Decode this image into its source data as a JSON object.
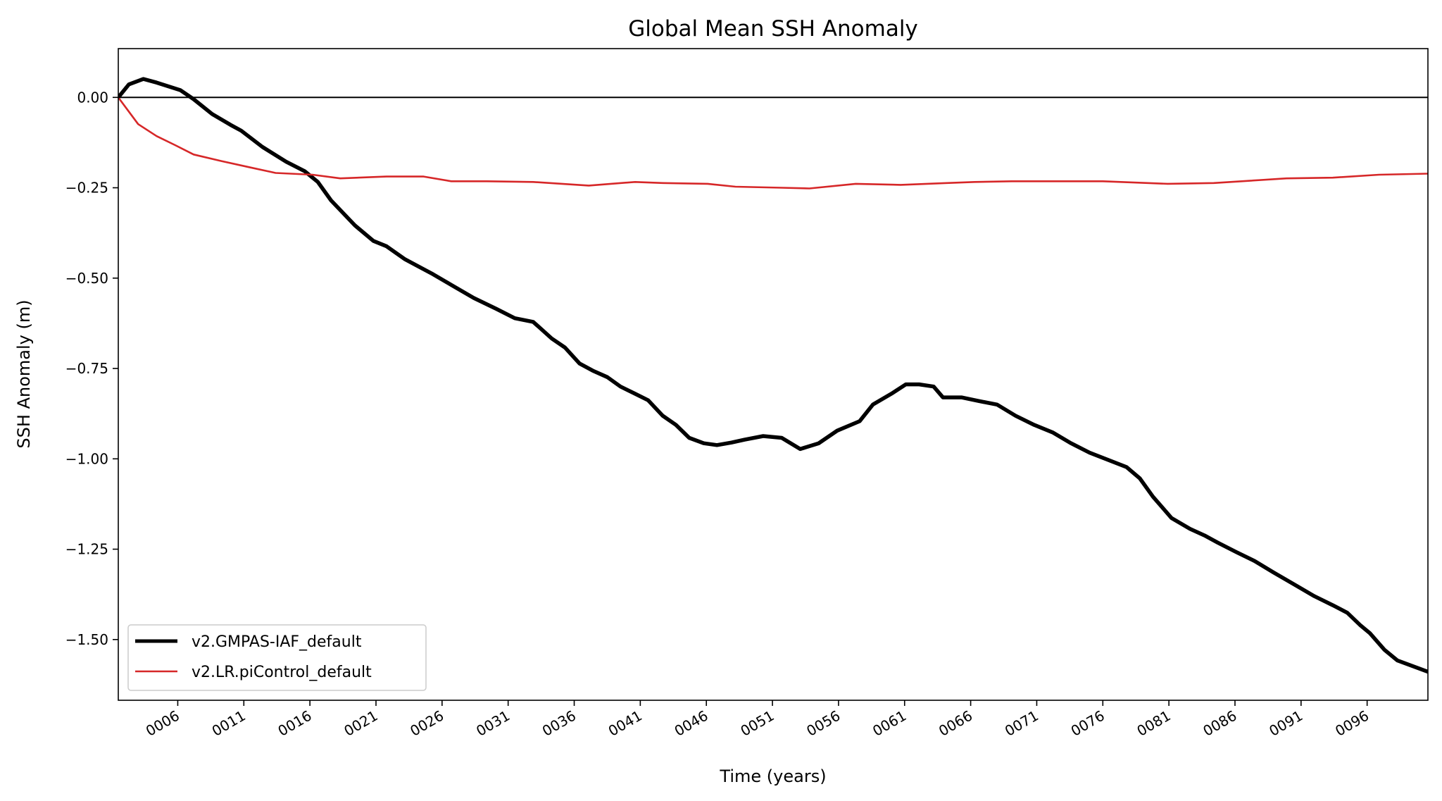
{
  "chart_data": {
    "type": "line",
    "title": "Global Mean SSH Anomaly",
    "xlabel": "Time (years)",
    "ylabel": "SSH Anomaly (m)",
    "xlim": [
      1.5,
      100.6
    ],
    "ylim": [
      -1.668,
      0.135
    ],
    "grid": false,
    "legend_position": "lower-left",
    "x_ticks": [
      6,
      11,
      16,
      21,
      26,
      31,
      36,
      41,
      46,
      51,
      56,
      61,
      66,
      71,
      76,
      81,
      86,
      91,
      96
    ],
    "x_tick_labels": [
      "0006",
      "0011",
      "0016",
      "0021",
      "0026",
      "0031",
      "0036",
      "0041",
      "0046",
      "0051",
      "0056",
      "0061",
      "0066",
      "0071",
      "0076",
      "0081",
      "0086",
      "0091",
      "0096"
    ],
    "y_ticks": [
      0,
      -0.25,
      -0.5,
      -0.75,
      -1.0,
      -1.25,
      -1.5
    ],
    "y_tick_labels": [
      "0.00",
      "−0.25",
      "−0.50",
      "−0.75",
      "−1.00",
      "−1.25",
      "−1.50"
    ],
    "reference_line": 0,
    "series": [
      {
        "name": "v2.GMPAS-IAF_default",
        "color": "#000000",
        "x": [
          1.5,
          2.3,
          3.4,
          4.4,
          6.2,
          7.2,
          8.6,
          10.0,
          10.8,
          12.4,
          14.2,
          15.6,
          16.6,
          17.6,
          19.4,
          20.8,
          21.8,
          23.2,
          25.3,
          26.7,
          28.4,
          30.1,
          31.5,
          32.9,
          34.3,
          35.3,
          36.4,
          37.4,
          38.5,
          39.5,
          40.6,
          41.6,
          42.7,
          43.7,
          44.7,
          45.8,
          46.8,
          47.9,
          48.9,
          50.3,
          51.7,
          53.1,
          54.5,
          55.9,
          57.6,
          58.6,
          60.0,
          61.1,
          62.1,
          63.2,
          63.9,
          65.3,
          66.6,
          68.0,
          69.4,
          70.8,
          72.2,
          73.6,
          75.0,
          76.4,
          77.8,
          78.8,
          79.8,
          81.2,
          82.6,
          83.7,
          84.7,
          86.1,
          87.5,
          88.9,
          90.6,
          92.0,
          93.4,
          94.5,
          95.5,
          96.2,
          97.3,
          98.3,
          100.6
        ],
        "y": [
          0,
          0.036,
          0.051,
          0.041,
          0.02,
          -0.005,
          -0.046,
          -0.076,
          -0.092,
          -0.137,
          -0.178,
          -0.204,
          -0.234,
          -0.285,
          -0.354,
          -0.397,
          -0.412,
          -0.448,
          -0.489,
          -0.519,
          -0.555,
          -0.585,
          -0.611,
          -0.621,
          -0.667,
          -0.692,
          -0.736,
          -0.756,
          -0.774,
          -0.8,
          -0.82,
          -0.838,
          -0.881,
          -0.906,
          -0.942,
          -0.957,
          -0.962,
          -0.955,
          -0.947,
          -0.937,
          -0.942,
          -0.973,
          -0.957,
          -0.922,
          -0.896,
          -0.85,
          -0.82,
          -0.794,
          -0.794,
          -0.8,
          -0.83,
          -0.83,
          -0.84,
          -0.85,
          -0.881,
          -0.906,
          -0.927,
          -0.957,
          -0.983,
          -1.003,
          -1.023,
          -1.054,
          -1.105,
          -1.164,
          -1.194,
          -1.212,
          -1.232,
          -1.258,
          -1.283,
          -1.314,
          -1.35,
          -1.38,
          -1.405,
          -1.426,
          -1.461,
          -1.482,
          -1.528,
          -1.558,
          -1.589
        ]
      },
      {
        "name": "v2.LR.piControl_default",
        "color": "#d62728",
        "x": [
          1.5,
          3.0,
          4.4,
          5.8,
          7.2,
          9.3,
          11.4,
          13.4,
          16.2,
          18.3,
          21.8,
          24.6,
          26.7,
          29.4,
          32.9,
          37.1,
          40.6,
          42.7,
          46.1,
          48.2,
          51.7,
          53.8,
          57.3,
          60.7,
          64.2,
          66.3,
          69.1,
          72.6,
          76.0,
          80.9,
          84.4,
          86.5,
          89.9,
          93.4,
          96.9,
          100.6
        ],
        "y": [
          0,
          -0.074,
          -0.107,
          -0.132,
          -0.158,
          -0.176,
          -0.193,
          -0.209,
          -0.214,
          -0.224,
          -0.219,
          -0.219,
          -0.232,
          -0.232,
          -0.234,
          -0.244,
          -0.234,
          -0.237,
          -0.239,
          -0.247,
          -0.25,
          -0.252,
          -0.239,
          -0.242,
          -0.237,
          -0.234,
          -0.232,
          -0.232,
          -0.232,
          -0.239,
          -0.237,
          -0.232,
          -0.224,
          -0.222,
          -0.214,
          -0.211
        ]
      }
    ]
  }
}
